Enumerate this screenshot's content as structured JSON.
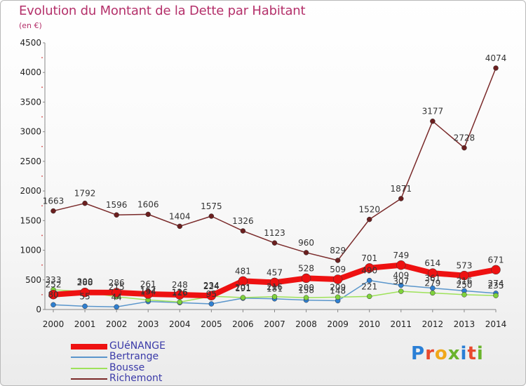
{
  "title": "Evolution du Montant de la Dette par Habitant",
  "unit_label": "(en €)",
  "logo_text": "Proxiti",
  "colors": {
    "title": "#b4306a",
    "axis_text": "#222222",
    "grid": "#d9d9d9",
    "legend_text": "#3a3aa8",
    "logo_letters": [
      "#2a7fd6",
      "#e8492e",
      "#f0a81a",
      "#6ab42c",
      "#2a7fd6",
      "#e8492e",
      "#6ab42c"
    ]
  },
  "chart_data": {
    "type": "line",
    "x": [
      "2000",
      "2001",
      "2002",
      "2003",
      "2004",
      "2005",
      "2006",
      "2007",
      "2008",
      "2009",
      "2010",
      "2011",
      "2012",
      "2013",
      "2014"
    ],
    "ylim": [
      0,
      4500
    ],
    "yticks": [
      0,
      500,
      1000,
      1500,
      2000,
      2500,
      3000,
      3500,
      4000,
      4500
    ],
    "grid": false,
    "legend_position": "bottom-left",
    "series": [
      {
        "name": "GUéNANGE",
        "color": "#ee1111",
        "marker_color": "#ee1111",
        "width": 8,
        "marker_size": 6.5,
        "show_labels": true,
        "values": [
          252,
          288,
          286,
          261,
          248,
          234,
          481,
          457,
          528,
          509,
          701,
          749,
          614,
          573,
          671
        ]
      },
      {
        "name": "Bertrange",
        "color": "#5a96cc",
        "marker_color": "#2f7fd0",
        "width": 1.5,
        "marker_size": 3.5,
        "show_labels": true,
        "values": [
          80,
          55,
          44,
          134,
          116,
          95,
          191,
          181,
          158,
          148,
          490,
          409,
          361,
          316,
          274
        ]
      },
      {
        "name": "Bousse",
        "color": "#9ee25a",
        "marker_color": "#7fd23c",
        "width": 1.5,
        "marker_size": 3.5,
        "show_labels": true,
        "values": [
          333,
          300,
          215,
          162,
          126,
          224,
          201,
          216,
          200,
          209,
          221,
          307,
          279,
          250,
          235
        ]
      },
      {
        "name": "Richemont",
        "color": "#7a2a2a",
        "marker_color": "#6b1f1f",
        "width": 1.5,
        "marker_size": 3.5,
        "show_labels": true,
        "values": [
          1663,
          1792,
          1596,
          1606,
          1404,
          1575,
          1326,
          1123,
          960,
          829,
          1520,
          1871,
          3177,
          2728,
          4074
        ]
      }
    ]
  }
}
